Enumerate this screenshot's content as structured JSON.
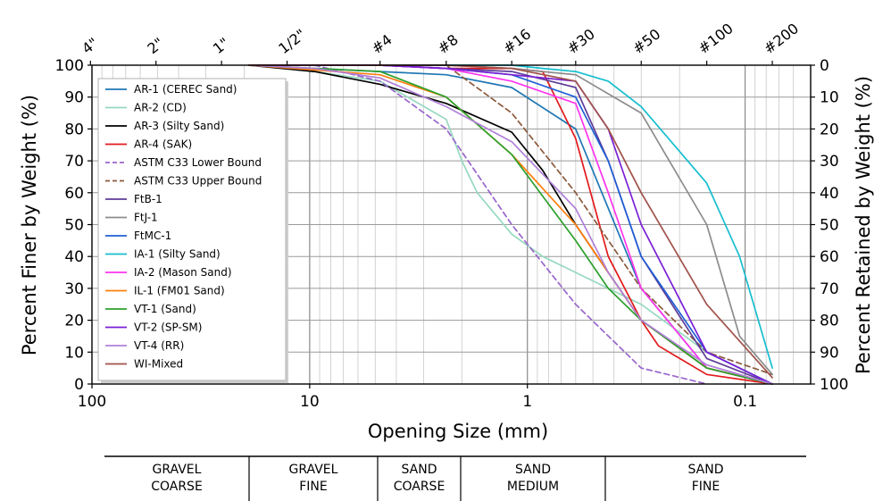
{
  "chart_data": {
    "type": "line",
    "xlabel": "Opening Size (mm)",
    "ylabel": "Percent Finer by Weight (%)",
    "ylabel_right": "Percent Retained by Weight (%)",
    "x_scale": "log",
    "x_reversed": true,
    "xlim": [
      100,
      0.05
    ],
    "ylim": [
      0,
      100
    ],
    "grid": true,
    "legend_position": "upper-left",
    "x_ticks": [
      {
        "value": 100,
        "label": "100"
      },
      {
        "value": 10,
        "label": "10"
      },
      {
        "value": 1,
        "label": "1"
      },
      {
        "value": 0.1,
        "label": "0.1"
      }
    ],
    "y_ticks": [
      0,
      10,
      20,
      30,
      40,
      50,
      60,
      70,
      80,
      90,
      100
    ],
    "y_ticks_right": [
      100,
      90,
      80,
      70,
      60,
      50,
      40,
      30,
      20,
      10,
      0
    ],
    "sieve_ticks": [
      {
        "label": "4\"",
        "size": 101.6
      },
      {
        "label": "2\"",
        "size": 50.8
      },
      {
        "label": "1\"",
        "size": 25.4
      },
      {
        "label": "1/2\"",
        "size": 12.7
      },
      {
        "label": "#4",
        "size": 4.75
      },
      {
        "label": "#8",
        "size": 2.36
      },
      {
        "label": "#16",
        "size": 1.18
      },
      {
        "label": "#30",
        "size": 0.6
      },
      {
        "label": "#50",
        "size": 0.3
      },
      {
        "label": "#100",
        "size": 0.15
      },
      {
        "label": "#200",
        "size": 0.075
      }
    ],
    "soil_classes": [
      {
        "line1": "GRAVEL",
        "line2": "COARSE",
        "from": 100,
        "to": 19
      },
      {
        "line1": "GRAVEL",
        "line2": "FINE",
        "from": 19,
        "to": 4.75
      },
      {
        "line1": "SAND",
        "line2": "COARSE",
        "from": 4.75,
        "to": 2
      },
      {
        "line1": "SAND",
        "line2": "MEDIUM",
        "from": 2,
        "to": 0.425
      },
      {
        "line1": "SAND",
        "line2": "FINE",
        "from": 0.425,
        "to": 0.075
      }
    ],
    "series": [
      {
        "name": "AR-1 (CEREC Sand)",
        "color": "#1f77b4",
        "dash": false,
        "points": [
          [
            19,
            100
          ],
          [
            9.5,
            99
          ],
          [
            4.75,
            98
          ],
          [
            2.36,
            97
          ],
          [
            1.18,
            93
          ],
          [
            0.6,
            80
          ],
          [
            0.3,
            30
          ],
          [
            0.15,
            5
          ],
          [
            0.075,
            0
          ]
        ]
      },
      {
        "name": "AR-2 (CD)",
        "color": "#98d8c0",
        "dash": false,
        "points": [
          [
            19,
            100
          ],
          [
            9.5,
            98
          ],
          [
            4.75,
            95
          ],
          [
            2.36,
            83
          ],
          [
            2,
            70
          ],
          [
            1.7,
            60
          ],
          [
            1.18,
            47
          ],
          [
            0.85,
            40
          ],
          [
            0.6,
            35
          ],
          [
            0.425,
            30
          ],
          [
            0.3,
            25
          ],
          [
            0.15,
            10
          ],
          [
            0.075,
            0
          ]
        ]
      },
      {
        "name": "AR-3 (Silty Sand)",
        "color": "#000000",
        "dash": false,
        "points": [
          [
            19,
            100
          ],
          [
            9.5,
            98
          ],
          [
            4.75,
            94
          ],
          [
            2.36,
            88
          ],
          [
            1.18,
            79
          ],
          [
            0.85,
            67
          ],
          [
            0.6,
            50
          ],
          [
            0.425,
            35
          ],
          [
            0.3,
            20
          ],
          [
            0.15,
            5
          ],
          [
            0.075,
            0
          ]
        ]
      },
      {
        "name": "AR-4 (SAK)",
        "color": "#e31a1c",
        "dash": false,
        "points": [
          [
            19,
            100
          ],
          [
            4.75,
            100
          ],
          [
            2.36,
            99
          ],
          [
            1.18,
            99
          ],
          [
            0.85,
            98
          ],
          [
            0.6,
            77
          ],
          [
            0.425,
            40
          ],
          [
            0.3,
            20
          ],
          [
            0.25,
            12
          ],
          [
            0.15,
            3
          ],
          [
            0.075,
            0
          ]
        ]
      },
      {
        "name": "ASTM C33 Lower Bound",
        "color": "#9966cc",
        "dash": true,
        "points": [
          [
            9.5,
            100
          ],
          [
            4.75,
            95
          ],
          [
            2.36,
            80
          ],
          [
            1.18,
            50
          ],
          [
            0.6,
            25
          ],
          [
            0.3,
            5
          ],
          [
            0.15,
            0
          ]
        ]
      },
      {
        "name": "ASTM C33 Upper Bound",
        "color": "#8b5a3c",
        "dash": true,
        "points": [
          [
            9.5,
            100
          ],
          [
            4.75,
            100
          ],
          [
            2.36,
            100
          ],
          [
            1.18,
            85
          ],
          [
            0.6,
            60
          ],
          [
            0.3,
            30
          ],
          [
            0.15,
            10
          ],
          [
            0.075,
            3
          ]
        ]
      },
      {
        "name": "FtB-1",
        "color": "#5e3c99",
        "dash": false,
        "points": [
          [
            19,
            100
          ],
          [
            4.75,
            100
          ],
          [
            2.36,
            99
          ],
          [
            1.18,
            98
          ],
          [
            0.6,
            93
          ],
          [
            0.425,
            70
          ],
          [
            0.3,
            40
          ],
          [
            0.15,
            8
          ],
          [
            0.075,
            0
          ]
        ]
      },
      {
        "name": "FtJ-1",
        "color": "#8c8c8c",
        "dash": false,
        "points": [
          [
            19,
            100
          ],
          [
            4.75,
            100
          ],
          [
            2.36,
            100
          ],
          [
            1.18,
            99
          ],
          [
            0.85,
            98
          ],
          [
            0.6,
            97
          ],
          [
            0.3,
            85
          ],
          [
            0.15,
            50
          ],
          [
            0.106,
            15
          ],
          [
            0.075,
            3
          ]
        ]
      },
      {
        "name": "FtMC-1",
        "color": "#1f5fd6",
        "dash": false,
        "points": [
          [
            19,
            100
          ],
          [
            4.75,
            100
          ],
          [
            2.36,
            99
          ],
          [
            1.18,
            97
          ],
          [
            0.6,
            90
          ],
          [
            0.425,
            70
          ],
          [
            0.3,
            40
          ],
          [
            0.15,
            10
          ],
          [
            0.075,
            0
          ]
        ]
      },
      {
        "name": "IA-1 (Silty Sand)",
        "color": "#17becf",
        "dash": false,
        "points": [
          [
            19,
            100
          ],
          [
            4.75,
            100
          ],
          [
            1.18,
            100
          ],
          [
            0.85,
            99
          ],
          [
            0.6,
            98
          ],
          [
            0.425,
            95
          ],
          [
            0.3,
            87
          ],
          [
            0.15,
            63
          ],
          [
            0.106,
            40
          ],
          [
            0.075,
            5
          ]
        ]
      },
      {
        "name": "IA-2 (Mason Sand)",
        "color": "#ff33ee",
        "dash": false,
        "points": [
          [
            19,
            100
          ],
          [
            4.75,
            100
          ],
          [
            2.36,
            99
          ],
          [
            1.18,
            95
          ],
          [
            0.6,
            88
          ],
          [
            0.425,
            60
          ],
          [
            0.3,
            30
          ],
          [
            0.15,
            5
          ],
          [
            0.075,
            0
          ]
        ]
      },
      {
        "name": "IL-1 (FM01 Sand)",
        "color": "#ff7f0e",
        "dash": false,
        "points": [
          [
            19,
            100
          ],
          [
            4.75,
            97
          ],
          [
            2.36,
            90
          ],
          [
            1.18,
            72
          ],
          [
            0.6,
            50
          ],
          [
            0.425,
            35
          ],
          [
            0.3,
            20
          ],
          [
            0.15,
            5
          ],
          [
            0.075,
            0
          ]
        ]
      },
      {
        "name": "VT-1 (Sand)",
        "color": "#2ca02c",
        "dash": false,
        "points": [
          [
            19,
            100
          ],
          [
            4.75,
            98
          ],
          [
            2.36,
            90
          ],
          [
            1.18,
            72
          ],
          [
            0.6,
            45
          ],
          [
            0.425,
            30
          ],
          [
            0.3,
            20
          ],
          [
            0.15,
            5
          ],
          [
            0.075,
            0
          ]
        ]
      },
      {
        "name": "VT-2 (SP-SM)",
        "color": "#7a1fd6",
        "dash": false,
        "points": [
          [
            19,
            100
          ],
          [
            4.75,
            100
          ],
          [
            2.36,
            99
          ],
          [
            1.18,
            97
          ],
          [
            0.6,
            95
          ],
          [
            0.425,
            80
          ],
          [
            0.3,
            50
          ],
          [
            0.15,
            10
          ],
          [
            0.075,
            0
          ]
        ]
      },
      {
        "name": "VT-4 (RR)",
        "color": "#b07fd8",
        "dash": false,
        "points": [
          [
            19,
            100
          ],
          [
            9.5,
            99
          ],
          [
            4.75,
            96
          ],
          [
            2.36,
            87
          ],
          [
            1.18,
            76
          ],
          [
            0.6,
            55
          ],
          [
            0.425,
            35
          ],
          [
            0.3,
            20
          ],
          [
            0.15,
            6
          ],
          [
            0.075,
            0
          ]
        ]
      },
      {
        "name": "WI-Mixed",
        "color": "#a0524a",
        "dash": false,
        "points": [
          [
            19,
            100
          ],
          [
            4.75,
            100
          ],
          [
            2.36,
            100
          ],
          [
            1.18,
            99
          ],
          [
            0.6,
            95
          ],
          [
            0.425,
            80
          ],
          [
            0.3,
            60
          ],
          [
            0.15,
            25
          ],
          [
            0.075,
            2
          ]
        ]
      }
    ]
  }
}
